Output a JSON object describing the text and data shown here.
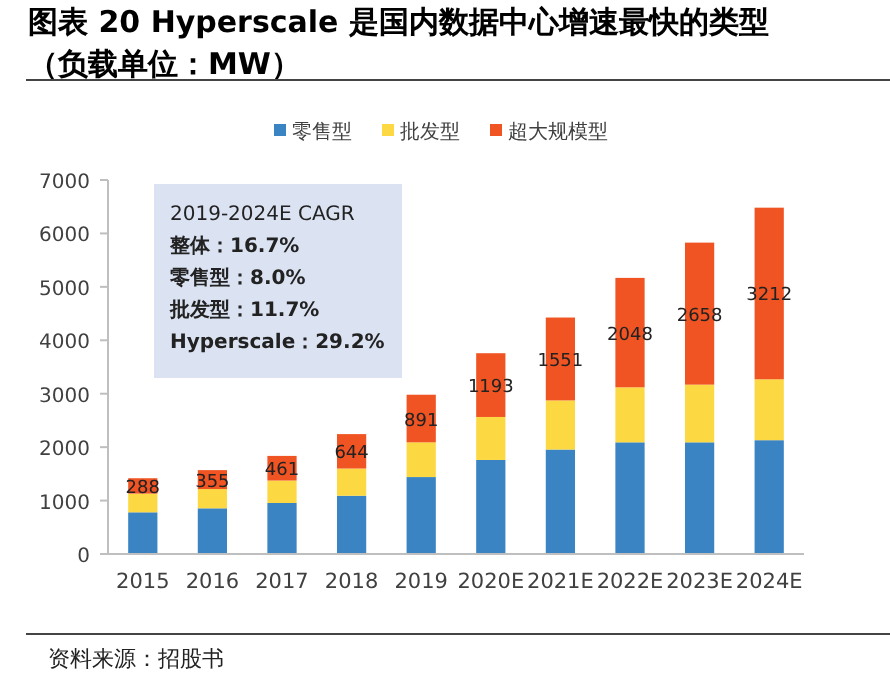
{
  "chart_data": {
    "type": "bar",
    "title": "图表 20 Hyperscale 是国内数据中心增速最快的类型（负载单位：MW）",
    "categories": [
      "2015",
      "2016",
      "2017",
      "2018",
      "2019",
      "2020E",
      "2021E",
      "2022E",
      "2023E",
      "2024E"
    ],
    "stacked": true,
    "legend": "top",
    "ylim": [
      0,
      7000
    ],
    "yticks": [
      0,
      1000,
      2000,
      3000,
      4000,
      5000,
      6000,
      7000
    ],
    "series": [
      {
        "name": "零售型",
        "color": "#3a84c4",
        "values": [
          780,
          855,
          955,
          1090,
          1440,
          1760,
          1955,
          2090,
          2090,
          2130
        ]
      },
      {
        "name": "批发型",
        "color": "#fcd843",
        "values": [
          350,
          360,
          420,
          510,
          650,
          805,
          920,
          1030,
          1080,
          1140
        ]
      },
      {
        "name": "超大规模型",
        "color": "#f05423",
        "values": [
          288,
          355,
          461,
          644,
          891,
          1193,
          1551,
          2048,
          2658,
          3212
        ],
        "value_labels": [
          "288",
          "355",
          "461",
          "644",
          "891",
          "1193",
          "1551",
          "2048",
          "2658",
          "3212"
        ]
      }
    ],
    "annotations": [
      "2019-2024E CAGR",
      "整体：16.7%",
      "零售型：8.0%",
      "批发型：11.7%",
      "Hyperscale：29.2%",
      "资料来源：招股书"
    ]
  }
}
